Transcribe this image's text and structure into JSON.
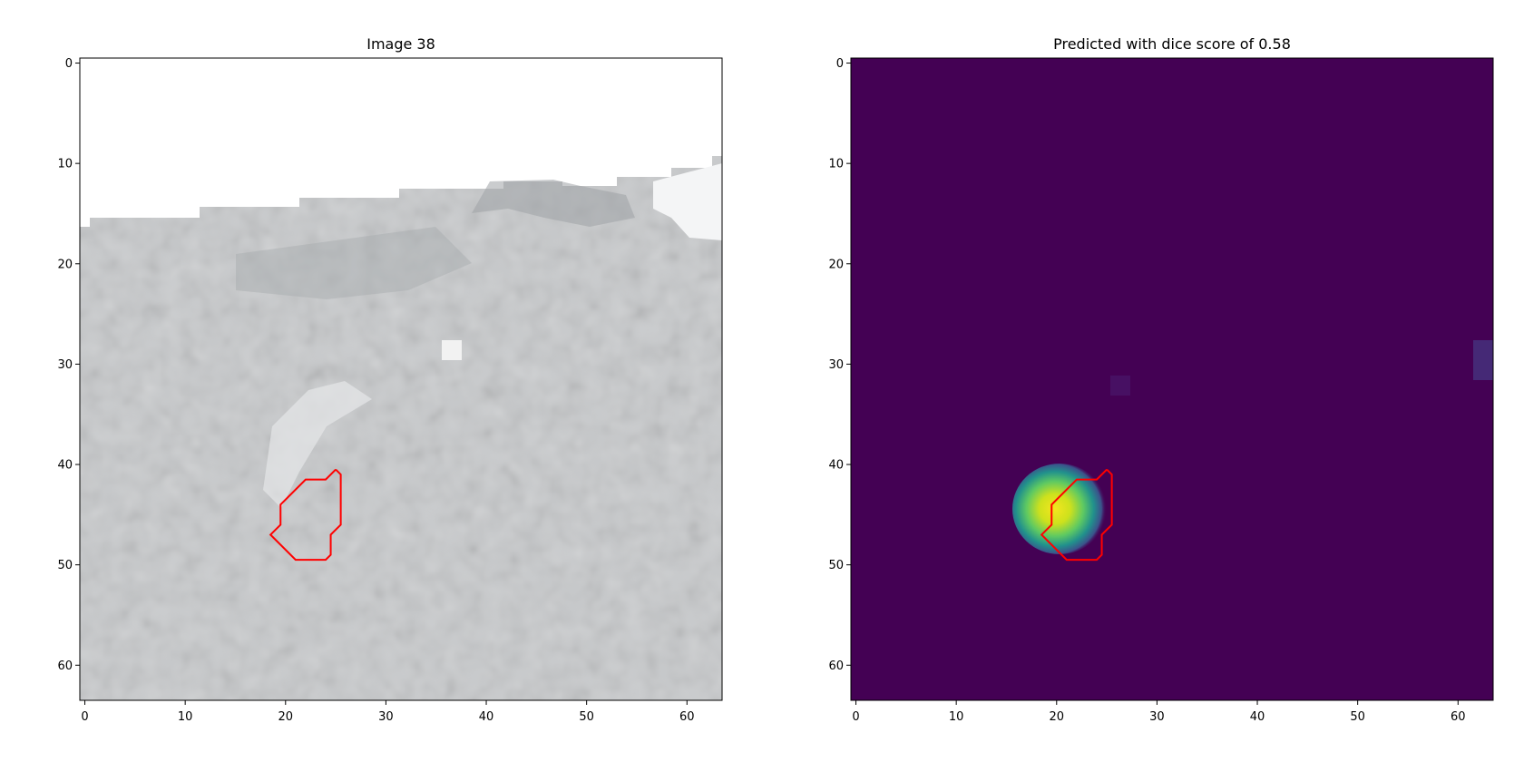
{
  "chart_data": [
    {
      "type": "heatmap",
      "title": "Image 38",
      "image_shape": [
        64,
        64
      ],
      "colormap": "gray",
      "extent": [
        -0.5,
        63.5,
        63.5,
        -0.5
      ],
      "x_ticks": [
        0,
        10,
        20,
        30,
        40,
        50,
        60
      ],
      "y_ticks": [
        0,
        10,
        20,
        30,
        40,
        50,
        60
      ],
      "contour": {
        "color": "#ff0000",
        "points": [
          [
            25,
            40.5
          ],
          [
            25.5,
            41
          ],
          [
            25.5,
            46
          ],
          [
            24.5,
            47
          ],
          [
            24.5,
            49
          ],
          [
            24,
            49.5
          ],
          [
            21,
            49.5
          ],
          [
            18.5,
            47
          ],
          [
            19.5,
            46
          ],
          [
            19.5,
            44
          ],
          [
            22,
            41.5
          ],
          [
            24,
            41.5
          ],
          [
            25,
            40.5
          ]
        ]
      }
    },
    {
      "type": "heatmap",
      "title": "Predicted with dice score of 0.58",
      "image_shape": [
        64,
        64
      ],
      "colormap": "viridis",
      "extent": [
        -0.5,
        63.5,
        63.5,
        -0.5
      ],
      "x_ticks": [
        0,
        10,
        20,
        30,
        40,
        50,
        60
      ],
      "y_ticks": [
        0,
        10,
        20,
        30,
        40,
        50,
        60
      ],
      "contour": {
        "color": "#ff0000",
        "points": [
          [
            25,
            40.5
          ],
          [
            25.5,
            41
          ],
          [
            25.5,
            46
          ],
          [
            24.5,
            47
          ],
          [
            24.5,
            49
          ],
          [
            24,
            49.5
          ],
          [
            21,
            49.5
          ],
          [
            18.5,
            47
          ],
          [
            19.5,
            46
          ],
          [
            19.5,
            44
          ],
          [
            22,
            41.5
          ],
          [
            24,
            41.5
          ],
          [
            25,
            40.5
          ]
        ]
      }
    }
  ]
}
